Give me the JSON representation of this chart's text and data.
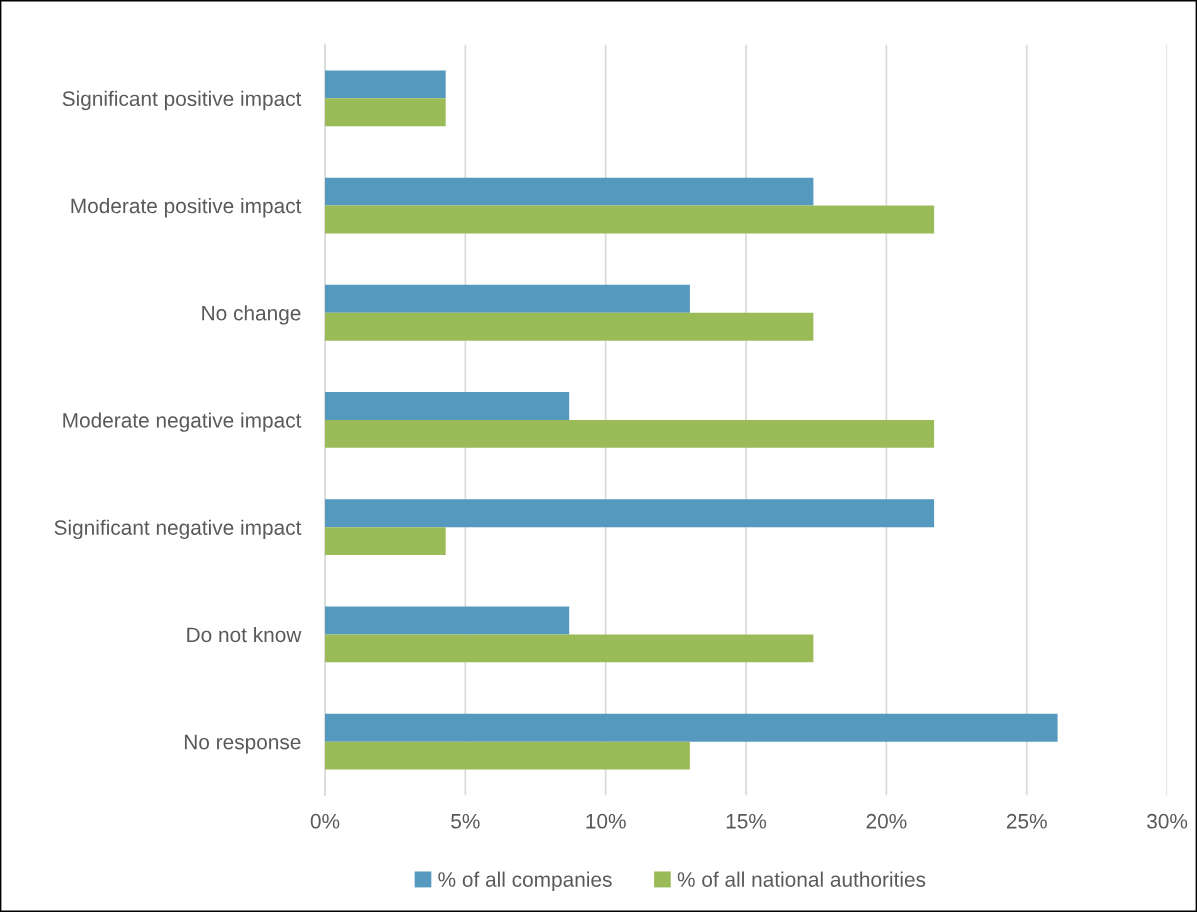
{
  "chart_data": {
    "type": "bar",
    "orientation": "horizontal",
    "categories": [
      "Significant positive impact",
      "Moderate positive impact",
      "No change",
      "Moderate negative impact",
      "Significant negative impact",
      "Do not know",
      "No response"
    ],
    "series": [
      {
        "name": "% of all companies",
        "color": "#5599bf",
        "values": [
          4.3,
          17.4,
          13.0,
          8.7,
          21.7,
          8.7,
          26.1
        ]
      },
      {
        "name": "% of all national authorities",
        "color": "#9bbb59",
        "values": [
          4.3,
          21.7,
          17.4,
          21.7,
          4.3,
          17.4,
          13.0
        ]
      }
    ],
    "xlim": [
      0,
      30
    ],
    "xticks": [
      {
        "value": 0,
        "label": "0%"
      },
      {
        "value": 5,
        "label": "5%"
      },
      {
        "value": 10,
        "label": "10%"
      },
      {
        "value": 15,
        "label": "15%"
      },
      {
        "value": 20,
        "label": "20%"
      },
      {
        "value": 25,
        "label": "25%"
      },
      {
        "value": 30,
        "label": "30%"
      }
    ],
    "grid": "x",
    "legend": "bottom"
  }
}
